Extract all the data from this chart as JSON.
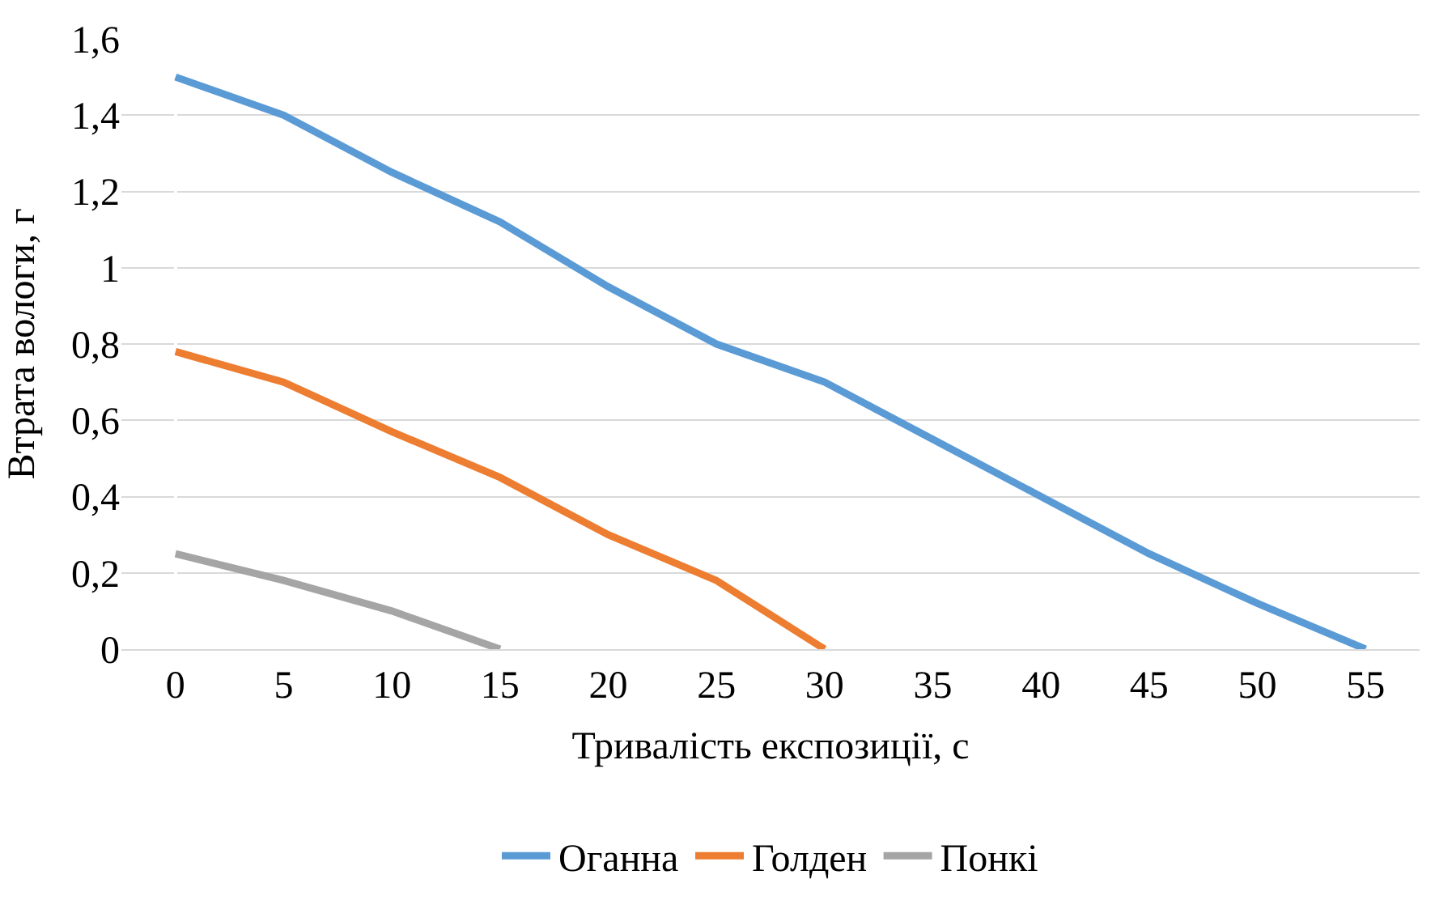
{
  "chart_data": {
    "type": "line",
    "xlabel": "Тривалість експозиції, с",
    "ylabel": "Втрата вологи, г",
    "categories": [
      "0",
      "5",
      "10",
      "15",
      "20",
      "25",
      "30",
      "35",
      "40",
      "45",
      "50",
      "55"
    ],
    "series": [
      {
        "name": "Оганна",
        "color": "#5b9bd5",
        "values": [
          1.5,
          1.4,
          1.25,
          1.12,
          0.95,
          0.8,
          0.7,
          0.55,
          0.4,
          0.25,
          0.12,
          0
        ]
      },
      {
        "name": "Голден",
        "color": "#ed7d31",
        "values": [
          0.78,
          0.7,
          0.57,
          0.45,
          0.3,
          0.18,
          0,
          null,
          null,
          null,
          null,
          null
        ]
      },
      {
        "name": "Понкі",
        "color": "#a5a5a5",
        "values": [
          0.25,
          0.18,
          0.1,
          0,
          null,
          null,
          null,
          null,
          null,
          null,
          null,
          null
        ]
      }
    ],
    "ylim": [
      0,
      1.6
    ],
    "yticks": [
      0,
      {
        "value": 0.2,
        "label": "0,2"
      },
      {
        "value": 0.4,
        "label": "0,4"
      },
      {
        "value": 0.6,
        "label": "0,6"
      },
      {
        "value": 0.8,
        "label": "0,8"
      },
      1,
      {
        "value": 1.2,
        "label": "1,2"
      },
      {
        "value": 1.4,
        "label": "1,4"
      },
      {
        "value": 1.6,
        "label": "1,6"
      }
    ],
    "grid": "y",
    "legend": "bottom",
    "marker": "none",
    "line_style": "solid"
  }
}
